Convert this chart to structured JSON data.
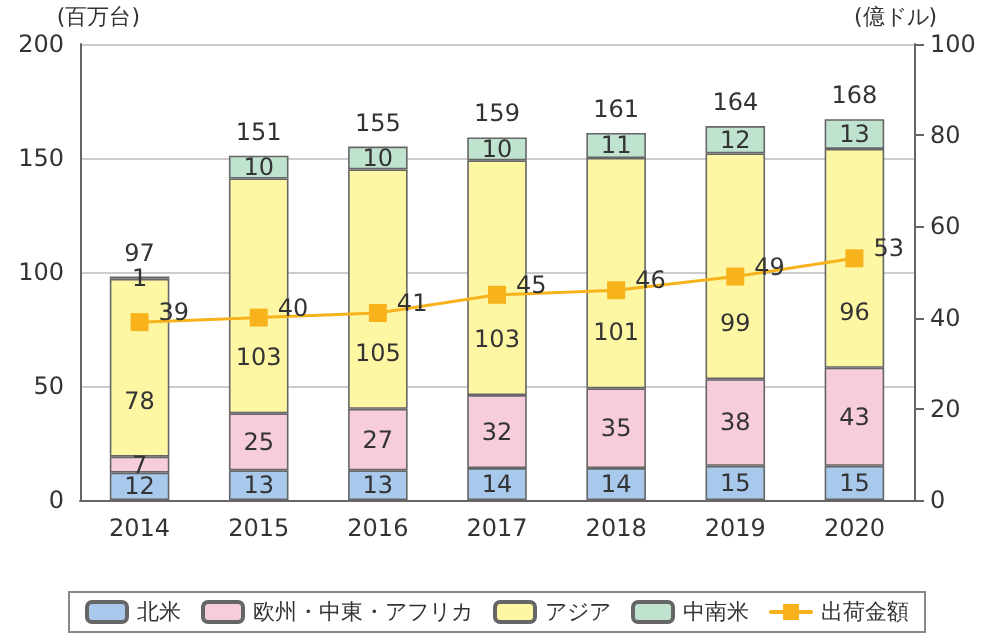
{
  "chart_data": {
    "type": "bar",
    "stacked": true,
    "categories": [
      "2014",
      "2015",
      "2016",
      "2017",
      "2018",
      "2019",
      "2020"
    ],
    "ylabel": "(百万台)",
    "y2label": "(億ドル)",
    "series": [
      {
        "name": "北米",
        "color": "#a8c8ec",
        "values": [
          12,
          13,
          13,
          14,
          14,
          15,
          15
        ]
      },
      {
        "name": "欧州・中東・アフリカ",
        "color": "#f7ccdb",
        "values": [
          7,
          25,
          27,
          32,
          35,
          38,
          43
        ]
      },
      {
        "name": "アジア",
        "color": "#fdf7a4",
        "values": [
          78,
          103,
          105,
          103,
          101,
          99,
          96
        ]
      },
      {
        "name": "中南米",
        "color": "#bfe3cf",
        "values": [
          1,
          10,
          10,
          10,
          11,
          12,
          13
        ]
      },
      {
        "name": "出荷金額",
        "type": "line",
        "axis": "y2",
        "color": "#f7b21c",
        "marker": "square",
        "values": [
          39,
          40,
          41,
          45,
          46,
          49,
          53
        ]
      }
    ],
    "totals": [
      "97",
      "151",
      "155",
      "159",
      "161",
      "164",
      "168"
    ],
    "ylim": [
      0,
      200
    ],
    "yticks": [
      0,
      50,
      100,
      150,
      200
    ],
    "y2lim": [
      0,
      100
    ],
    "y2ticks": [
      0,
      20,
      40,
      60,
      80,
      100
    ],
    "grid": "y",
    "legend": "bottom",
    "data_labels": true
  }
}
